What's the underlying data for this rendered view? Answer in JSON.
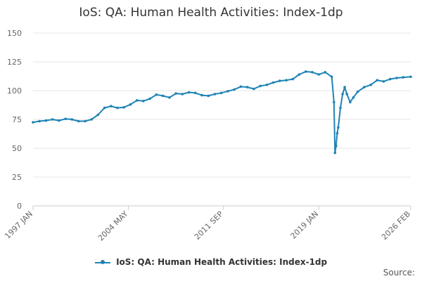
{
  "title": "IoS: QA: Human Health Activities: Index-1dp",
  "source_label": "Source:",
  "colors": {
    "series": "#1f84b4",
    "grid": "#e6e6e6",
    "axis": "#cccccc"
  },
  "chart_data": {
    "type": "line",
    "title": "IoS: QA: Human Health Activities: Index-1dp",
    "xlabel": "",
    "ylabel": "",
    "ylim": [
      0,
      150
    ],
    "yticks": [
      0,
      25,
      50,
      75,
      100,
      125,
      150
    ],
    "x_tick_labels": [
      "1997 JAN",
      "2004 MAY",
      "2011 SEP",
      "2019 JAN",
      "2026 FEB"
    ],
    "x_tick_dates": [
      "1997-01",
      "2004-05",
      "2011-09",
      "2019-01",
      "2026-02"
    ],
    "x_range": [
      "1997-01",
      "2026-02"
    ],
    "grid": true,
    "legend_position": "bottom",
    "series": [
      {
        "name": "IoS: QA: Human Health Activities: Index-1dp",
        "x": [
          "1997-01",
          "1997-07",
          "1998-01",
          "1998-07",
          "1999-01",
          "1999-07",
          "2000-01",
          "2000-07",
          "2001-01",
          "2001-07",
          "2002-01",
          "2002-07",
          "2003-01",
          "2003-07",
          "2004-01",
          "2004-07",
          "2005-01",
          "2005-07",
          "2006-01",
          "2006-07",
          "2007-01",
          "2007-07",
          "2008-01",
          "2008-07",
          "2009-01",
          "2009-07",
          "2010-01",
          "2010-07",
          "2011-01",
          "2011-07",
          "2012-01",
          "2012-07",
          "2013-01",
          "2013-07",
          "2014-01",
          "2014-07",
          "2015-01",
          "2015-07",
          "2016-01",
          "2016-07",
          "2017-01",
          "2017-07",
          "2018-01",
          "2018-07",
          "2019-01",
          "2019-07",
          "2020-01",
          "2020-03",
          "2020-04",
          "2020-05",
          "2020-06",
          "2020-07",
          "2020-09",
          "2020-11",
          "2021-01",
          "2021-03",
          "2021-06",
          "2021-09",
          "2022-01",
          "2022-07",
          "2023-01",
          "2023-07",
          "2024-01",
          "2024-07",
          "2025-01",
          "2025-07",
          "2026-02"
        ],
        "values": [
          72.5,
          73.5,
          74,
          75,
          74,
          75.5,
          75,
          73.5,
          73.5,
          75,
          79,
          85,
          86.5,
          85,
          85.5,
          88,
          91.5,
          91,
          93,
          96.5,
          95.5,
          94,
          97.5,
          97,
          98.5,
          98,
          96,
          95.5,
          97,
          98,
          99.5,
          101,
          103.5,
          103,
          101.5,
          104,
          105,
          107,
          108.5,
          109,
          110,
          114,
          116.5,
          116,
          114,
          116,
          112,
          90,
          46,
          52,
          63,
          68,
          85,
          97,
          103,
          97,
          90,
          94,
          99,
          103,
          105,
          109,
          108,
          110,
          111,
          111.5,
          112
        ]
      }
    ]
  }
}
